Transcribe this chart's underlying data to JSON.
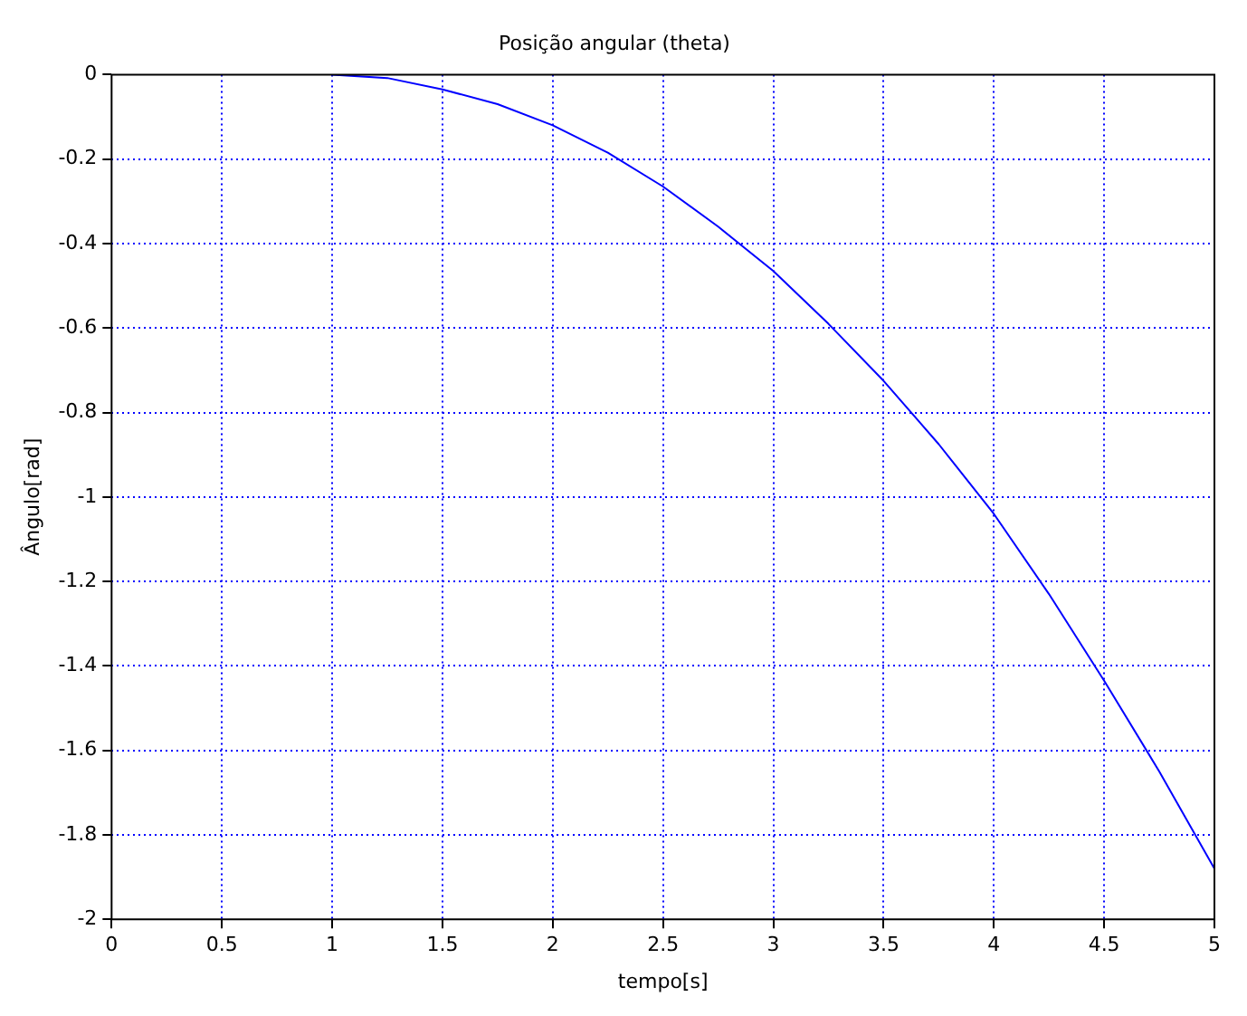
{
  "chart_data": {
    "type": "line",
    "title": "Posição angular (theta)",
    "xlabel": "tempo[s]",
    "ylabel": "Ângulo[rad]",
    "series": [
      {
        "color": "#0000ff",
        "x": [
          1,
          1.25,
          1.5,
          1.75,
          2,
          2.25,
          2.5,
          2.75,
          3,
          3.25,
          3.5,
          3.75,
          4,
          4.25,
          4.5,
          4.75,
          5
        ],
        "values": [
          0,
          -0.008,
          -0.035,
          -0.07,
          -0.12,
          -0.185,
          -0.265,
          -0.36,
          -0.465,
          -0.59,
          -0.725,
          -0.875,
          -1.04,
          -1.23,
          -1.435,
          -1.65,
          -1.88
        ]
      }
    ],
    "xlim": [
      0,
      5
    ],
    "xticks": [
      0,
      0.5,
      1,
      1.5,
      2,
      2.5,
      3,
      3.5,
      4,
      4.5,
      5
    ],
    "ylim": [
      -2,
      0
    ],
    "yticks": [
      -2,
      -1.8,
      -1.6,
      -1.4,
      -1.2,
      -1,
      -0.8,
      -0.6,
      -0.4,
      -0.2,
      0
    ],
    "grid": true,
    "legend": false,
    "marker": "none",
    "line_style": "solid"
  }
}
